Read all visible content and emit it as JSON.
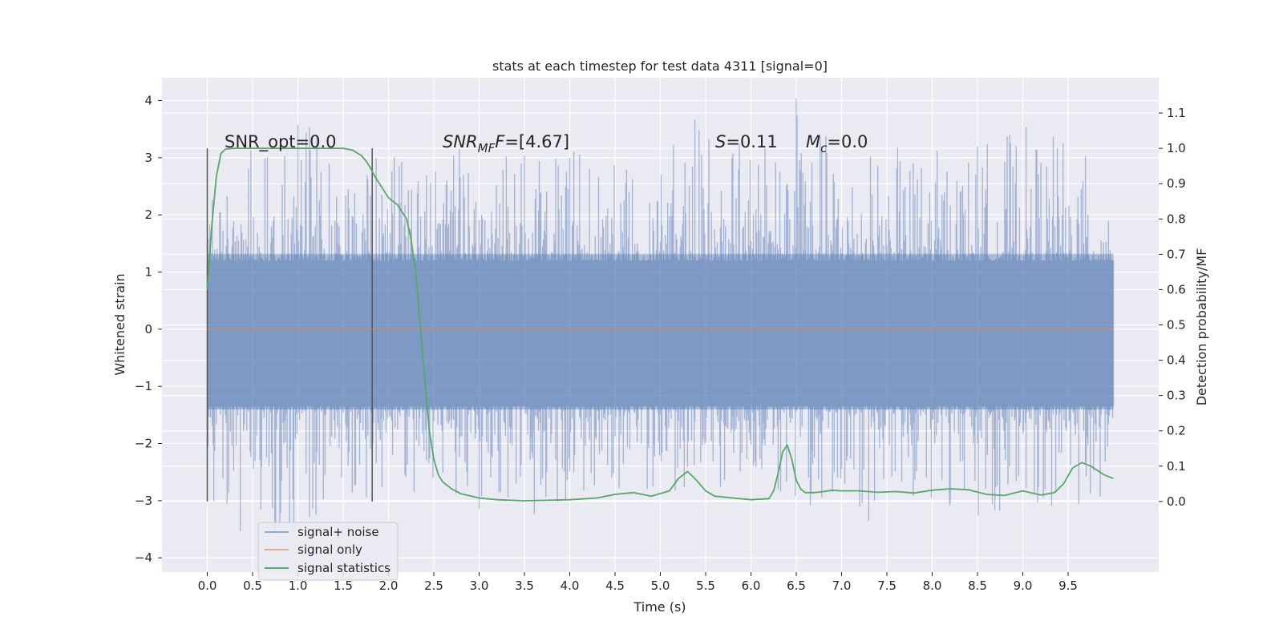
{
  "chart_data": {
    "type": "line",
    "title": "stats at each timestep for test data 4311 [signal=0]",
    "xlabel": "Time (s)",
    "ylabel_left": "Whitened strain",
    "ylabel_right": "Detection probability/MF",
    "xlim": [
      -0.5,
      10.5
    ],
    "ylim_left": [
      -4.25,
      4.4
    ],
    "ylim_right": [
      -0.2,
      1.2
    ],
    "x_ticks": [
      "0.0",
      "0.5",
      "1.0",
      "1.5",
      "2.0",
      "2.5",
      "3.0",
      "3.5",
      "4.0",
      "4.5",
      "5.0",
      "5.5",
      "6.0",
      "6.5",
      "7.0",
      "7.5",
      "8.0",
      "8.5",
      "9.0",
      "9.5"
    ],
    "y_ticks_left": [
      "−4",
      "−3",
      "−2",
      "−1",
      "0",
      "1",
      "2",
      "3",
      "4"
    ],
    "y_ticks_right": [
      "0.0",
      "0.1",
      "0.2",
      "0.3",
      "0.4",
      "0.5",
      "0.6",
      "0.7",
      "0.8",
      "0.9",
      "1.0",
      "1.1"
    ],
    "grid": true,
    "legend_position": "lower-left",
    "colors": {
      "background": "#eaeaf2",
      "grid": "#ffffff",
      "noise": "#4c72b0",
      "signal_only": "#dd8452",
      "statistics": "#55a868",
      "vline": "#555555"
    },
    "series": [
      {
        "name": "signal+ noise",
        "axis": "left",
        "envelope": {
          "x": [
            0.0,
            0.5,
            1.0,
            1.5,
            2.0,
            2.5,
            3.0,
            3.5,
            4.0,
            4.5,
            5.0,
            5.5,
            6.0,
            6.5,
            7.0,
            7.5,
            8.0,
            8.5,
            9.0,
            9.5,
            10.0
          ],
          "upper": [
            2.6,
            3.2,
            3.8,
            3.0,
            3.2,
            3.1,
            3.3,
            3.1,
            3.2,
            2.9,
            3.0,
            3.9,
            3.3,
            4.05,
            3.2,
            3.2,
            3.2,
            3.3,
            3.6,
            3.4,
            2.6
          ],
          "lower": [
            -3.0,
            -3.9,
            -3.5,
            -3.1,
            -3.0,
            -2.9,
            -3.3,
            -3.4,
            -3.1,
            -2.9,
            -3.0,
            -2.9,
            -2.7,
            -3.2,
            -3.0,
            -3.6,
            -3.0,
            -3.4,
            -3.0,
            -3.2,
            -2.9
          ]
        },
        "band_99": [
          -1.8,
          2.0
        ]
      },
      {
        "name": "signal only",
        "axis": "left",
        "x": [
          0.0,
          10.0
        ],
        "y": [
          0.0,
          0.0
        ]
      },
      {
        "name": "signal statistics",
        "axis": "right",
        "x": [
          0.0,
          0.05,
          0.1,
          0.15,
          0.2,
          0.3,
          0.5,
          0.8,
          1.0,
          1.2,
          1.4,
          1.5,
          1.6,
          1.7,
          1.75,
          1.8,
          1.85,
          1.9,
          2.0,
          2.1,
          2.2,
          2.25,
          2.3,
          2.35,
          2.4,
          2.45,
          2.5,
          2.55,
          2.6,
          2.7,
          2.8,
          3.0,
          3.2,
          3.5,
          3.7,
          4.0,
          4.3,
          4.5,
          4.7,
          4.9,
          5.1,
          5.2,
          5.3,
          5.4,
          5.5,
          5.6,
          5.8,
          6.0,
          6.2,
          6.25,
          6.3,
          6.35,
          6.4,
          6.45,
          6.5,
          6.55,
          6.6,
          6.7,
          6.8,
          6.9,
          7.0,
          7.2,
          7.4,
          7.6,
          7.8,
          8.0,
          8.2,
          8.4,
          8.6,
          8.8,
          9.0,
          9.2,
          9.35,
          9.45,
          9.55,
          9.65,
          9.75,
          9.9,
          10.0
        ],
        "y": [
          0.6,
          0.78,
          0.92,
          0.985,
          0.998,
          1.0,
          1.0,
          1.0,
          1.0,
          1.0,
          1.0,
          1.0,
          0.995,
          0.98,
          0.965,
          0.945,
          0.92,
          0.9,
          0.86,
          0.84,
          0.8,
          0.74,
          0.65,
          0.5,
          0.35,
          0.2,
          0.12,
          0.075,
          0.055,
          0.035,
          0.022,
          0.01,
          0.005,
          0.002,
          0.003,
          0.005,
          0.01,
          0.02,
          0.025,
          0.015,
          0.03,
          0.065,
          0.085,
          0.06,
          0.03,
          0.015,
          0.01,
          0.005,
          0.008,
          0.03,
          0.08,
          0.14,
          0.16,
          0.12,
          0.06,
          0.035,
          0.025,
          0.025,
          0.028,
          0.032,
          0.03,
          0.03,
          0.026,
          0.028,
          0.024,
          0.032,
          0.036,
          0.033,
          0.02,
          0.017,
          0.03,
          0.018,
          0.025,
          0.05,
          0.095,
          0.11,
          0.1,
          0.075,
          0.065
        ]
      }
    ],
    "vlines": [
      0.0,
      1.82
    ],
    "annotations": {
      "snr_opt": "SNR_opt=0.0",
      "snr_mf_main": "SNR",
      "snr_mf_sub": "MF",
      "snr_mf_rest": "=[4.67]",
      "s_main": "S",
      "s_rest": "=0.11",
      "mc_main": "M",
      "mc_sub": "c",
      "mc_rest": "=0.0"
    }
  }
}
